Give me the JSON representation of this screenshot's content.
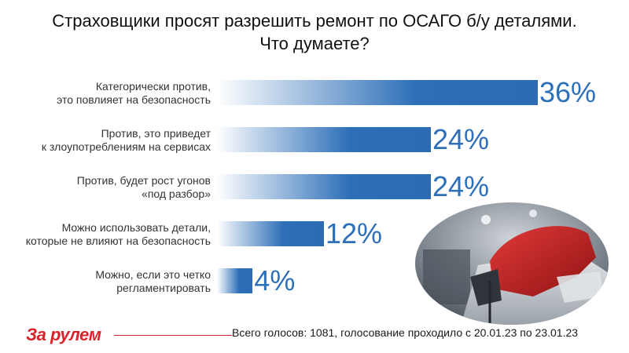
{
  "title": {
    "line1": "Страховщики просят разрешить ремонт по ОСАГО б/у деталями.",
    "line2": "Что думаете?"
  },
  "chart_data": {
    "type": "bar",
    "orientation": "horizontal",
    "title": "Страховщики просят разрешить ремонт по ОСАГО б/у деталями. Что думаете?",
    "xlabel": "",
    "ylabel": "",
    "xlim": [
      0,
      36
    ],
    "grid": false,
    "bar_color": "#2d6fb8",
    "categories": [
      [
        "Категорически против,",
        "это повлияет на безопасность"
      ],
      [
        "Против, это приведет",
        "к злоупотреблениям на сервисах"
      ],
      [
        "Против, будет рост угонов",
        "«под разбор»"
      ],
      [
        "Можно использовать детали,",
        "которые не влияют на безопасность"
      ],
      [
        "Можно, если это четко",
        "регламентировать"
      ]
    ],
    "values": [
      36,
      24,
      24,
      12,
      4
    ],
    "value_labels": [
      "36%",
      "24%",
      "24%",
      "12%",
      "4%"
    ]
  },
  "footer": {
    "logo": "За рулем",
    "text": "Всего голосов: 1081, голосование проходило с 20.01.23 по 23.01.23",
    "accent": "#d8232a"
  }
}
